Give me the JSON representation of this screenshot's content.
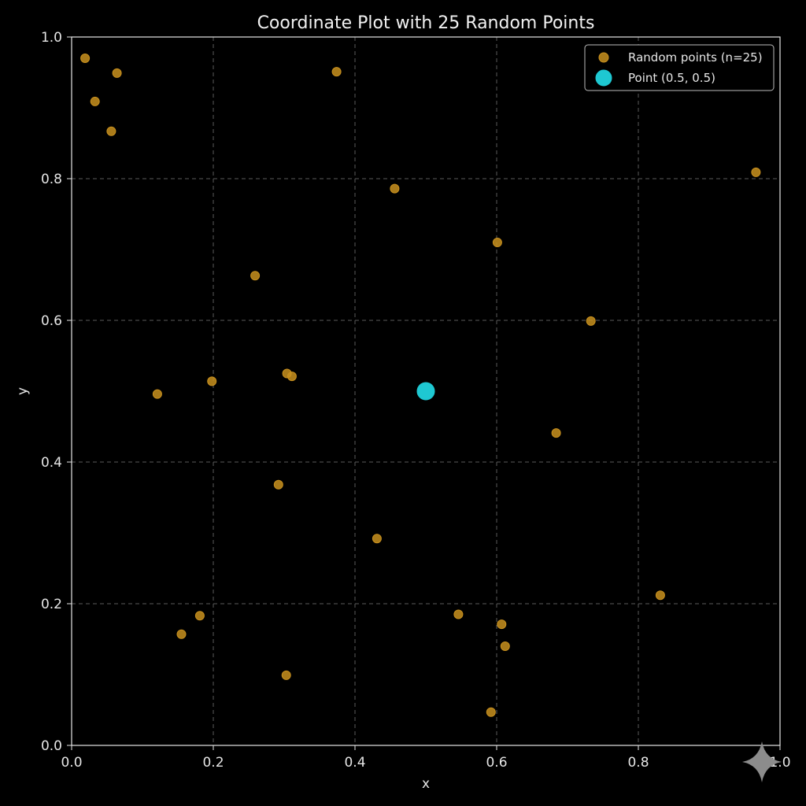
{
  "chart_data": {
    "type": "scatter",
    "title": "Coordinate Plot with 25 Random Points",
    "xlabel": "x",
    "ylabel": "y",
    "xlim": [
      0.0,
      1.0
    ],
    "ylim": [
      0.0,
      1.0
    ],
    "xticks": [
      0.0,
      0.2,
      0.4,
      0.6,
      0.8,
      1.0
    ],
    "yticks": [
      0.0,
      0.2,
      0.4,
      0.6,
      0.8,
      1.0
    ],
    "xtick_labels": [
      "0.0",
      "0.2",
      "0.4",
      "0.6",
      "0.8",
      "1.0"
    ],
    "ytick_labels": [
      "0.0",
      "0.2",
      "0.4",
      "0.6",
      "0.8",
      "1.0"
    ],
    "grid": true,
    "legend_position": "top-right",
    "series": [
      {
        "name": "Random points (n=25)",
        "color": "#c8901e",
        "points": [
          [
            0.019,
            0.97
          ],
          [
            0.033,
            0.909
          ],
          [
            0.064,
            0.949
          ],
          [
            0.056,
            0.867
          ],
          [
            0.374,
            0.951
          ],
          [
            0.456,
            0.786
          ],
          [
            0.259,
            0.663
          ],
          [
            0.601,
            0.71
          ],
          [
            0.966,
            0.809
          ],
          [
            0.733,
            0.599
          ],
          [
            0.121,
            0.496
          ],
          [
            0.198,
            0.514
          ],
          [
            0.304,
            0.525
          ],
          [
            0.311,
            0.521
          ],
          [
            0.684,
            0.441
          ],
          [
            0.292,
            0.368
          ],
          [
            0.431,
            0.292
          ],
          [
            0.831,
            0.212
          ],
          [
            0.155,
            0.157
          ],
          [
            0.181,
            0.183
          ],
          [
            0.546,
            0.185
          ],
          [
            0.607,
            0.171
          ],
          [
            0.612,
            0.14
          ],
          [
            0.303,
            0.099
          ],
          [
            0.592,
            0.047
          ]
        ]
      },
      {
        "name": "Point (0.5, 0.5)",
        "color": "#1ec8d2",
        "points": [
          [
            0.5,
            0.5
          ]
        ]
      }
    ]
  },
  "colors": {
    "background": "#000000",
    "axes": "#e6e6e6",
    "grid": "#5a5a5a",
    "legend_border": "#bdbdbd",
    "watermark": "#8c8c8c"
  },
  "icons": {
    "watermark": "four-point-sparkle-icon"
  }
}
